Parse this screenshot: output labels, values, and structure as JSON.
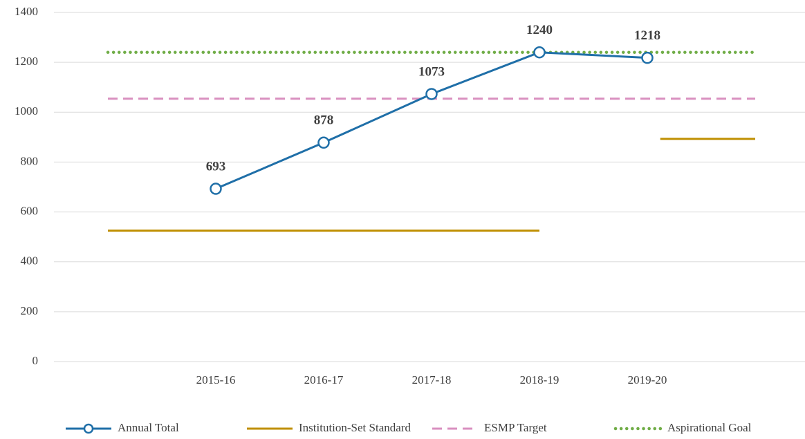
{
  "chart_data": {
    "type": "line",
    "categories": [
      null,
      "2015-16",
      "2016-17",
      "2017-18",
      "2018-19",
      "2019-20",
      null
    ],
    "series": [
      {
        "name": "Annual Total",
        "color": "#1f6fa8",
        "style": "solid-marker",
        "values": [
          null,
          693,
          878,
          1073,
          1240,
          1218,
          null
        ]
      },
      {
        "name": "Institution-Set Standard",
        "color": "#bf8f00",
        "style": "solid",
        "values": [
          525,
          525,
          525,
          525,
          525,
          null,
          893
        ]
      },
      {
        "name": "ESMP Target",
        "color": "#d98fbf",
        "style": "dashed",
        "values": [
          1054,
          1054,
          1054,
          1054,
          1054,
          1054,
          1054
        ]
      },
      {
        "name": "Aspirational Goal",
        "color": "#70ad47",
        "style": "dotted",
        "values": [
          1240,
          1240,
          1240,
          1240,
          1240,
          1240,
          1240
        ]
      }
    ],
    "data_labels_series": 0,
    "ylim": [
      0,
      1400
    ],
    "yticks": [
      0,
      200,
      400,
      600,
      800,
      1000,
      1200,
      1400
    ],
    "grid": true,
    "legend": "bottom"
  }
}
